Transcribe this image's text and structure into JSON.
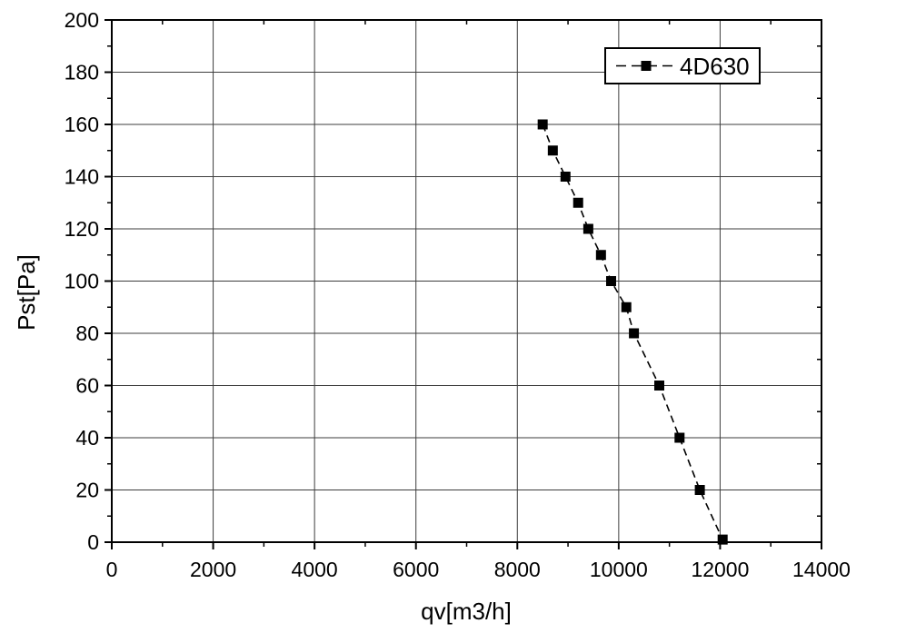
{
  "figure": {
    "background": "#ffffff",
    "frame_color": "#000000",
    "grid_color": "#3d3d3d",
    "series_color": "#000000",
    "marker_shape": "filled-square"
  },
  "chart_data": {
    "type": "line",
    "title": "",
    "xlabel": "qv[m3/h]",
    "ylabel": "Pst[Pa]",
    "xlim": [
      0,
      14000
    ],
    "ylim": [
      0,
      200
    ],
    "x_major_ticks": [
      0,
      2000,
      4000,
      6000,
      8000,
      10000,
      12000,
      14000
    ],
    "y_major_ticks": [
      0,
      20,
      40,
      60,
      80,
      100,
      120,
      140,
      160,
      180,
      200
    ],
    "x_minor_step": 1000,
    "y_minor_step": 10,
    "grid": true,
    "legend": {
      "position": "top-right",
      "border": true,
      "entries": [
        "4D630"
      ]
    },
    "series": [
      {
        "name": "4D630",
        "line_style": "dashed",
        "marker": "square",
        "color": "#000000",
        "points": [
          [
            8500,
            160
          ],
          [
            8700,
            150
          ],
          [
            8950,
            140
          ],
          [
            9200,
            130
          ],
          [
            9400,
            120
          ],
          [
            9650,
            110
          ],
          [
            9850,
            100
          ],
          [
            10150,
            90
          ],
          [
            10300,
            80
          ],
          [
            10800,
            60
          ],
          [
            11200,
            40
          ],
          [
            11600,
            20
          ],
          [
            12050,
            1
          ]
        ]
      }
    ]
  }
}
